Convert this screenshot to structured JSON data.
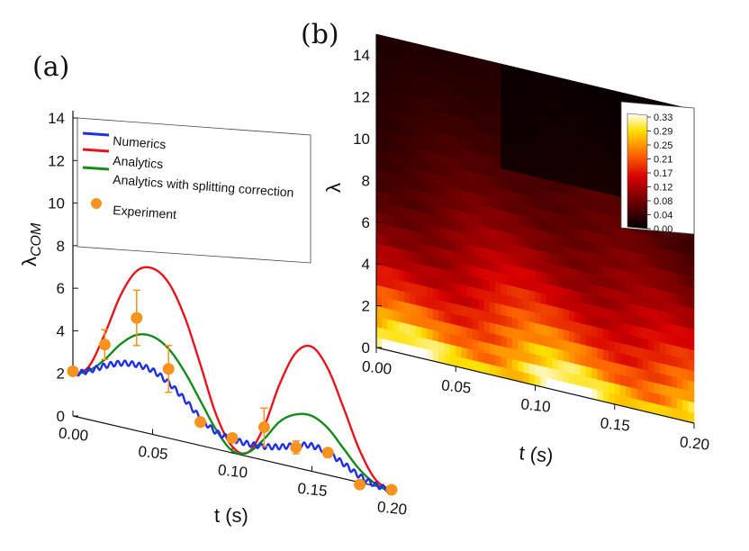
{
  "panel_a": "(a)",
  "panel_b": "(b)",
  "colors": {
    "numerics": "#1f2fe6",
    "analytics": "#e8141c",
    "splitting": "#138a1c",
    "experiment": "#f7931e"
  },
  "chart_data": [
    {
      "type": "line",
      "id": "a",
      "xlabel": "t (s)",
      "ylabel": "λ_COM",
      "ylabel_main": "λ",
      "ylabel_sub": "COM",
      "xlim": [
        0,
        0.2
      ],
      "ylim": [
        0,
        15
      ],
      "xticks": [
        "0.00",
        "0.05",
        "0.10",
        "0.15",
        "0.20"
      ],
      "yticks": [
        "0",
        "2",
        "4",
        "6",
        "8",
        "10",
        "12",
        "14"
      ],
      "legend": [
        "Numerics",
        "Analytics",
        "Analytics with splitting correction",
        "Experiment"
      ],
      "series": [
        {
          "name": "Numerics",
          "color": "#1f2fe6",
          "x": [
            0,
            0.01,
            0.02,
            0.03,
            0.04,
            0.05,
            0.06,
            0.07,
            0.08,
            0.09,
            0.1,
            0.11,
            0.12,
            0.13,
            0.14,
            0.15,
            0.16,
            0.17,
            0.18,
            0.19,
            0.2
          ],
          "y": [
            2.0,
            2.3,
            2.7,
            3.0,
            3.1,
            3.0,
            2.6,
            2.0,
            1.3,
            0.8,
            0.65,
            0.6,
            0.65,
            0.8,
            1.05,
            1.2,
            1.05,
            0.7,
            0.3,
            0.05,
            0.0
          ],
          "wiggle": 0.12
        },
        {
          "name": "Analytics",
          "color": "#e8141c",
          "x": [
            0,
            0.01,
            0.02,
            0.03,
            0.04,
            0.05,
            0.06,
            0.07,
            0.08,
            0.09,
            0.1,
            0.11,
            0.12,
            0.13,
            0.14,
            0.15,
            0.16,
            0.17,
            0.18,
            0.19,
            0.2
          ],
          "y": [
            2.0,
            2.5,
            4.2,
            6.2,
            7.5,
            7.8,
            7.3,
            5.9,
            3.8,
            1.6,
            0.3,
            0.2,
            1.6,
            3.8,
            5.4,
            5.85,
            5.0,
            3.3,
            1.5,
            0.3,
            0.0
          ]
        },
        {
          "name": "Analytics with splitting correction",
          "color": "#138a1c",
          "x": [
            0,
            0.01,
            0.02,
            0.03,
            0.04,
            0.05,
            0.06,
            0.07,
            0.08,
            0.09,
            0.1,
            0.11,
            0.12,
            0.13,
            0.14,
            0.15,
            0.16,
            0.17,
            0.18,
            0.19,
            0.2
          ],
          "y": [
            2.0,
            2.3,
            3.0,
            3.9,
            4.5,
            4.6,
            4.2,
            3.3,
            2.1,
            0.9,
            0.1,
            0.2,
            1.0,
            2.0,
            2.5,
            2.6,
            2.2,
            1.4,
            0.6,
            0.1,
            -0.1
          ]
        },
        {
          "name": "Experiment",
          "color": "#f7931e",
          "x": [
            0,
            0.02,
            0.04,
            0.06,
            0.08,
            0.1,
            0.12,
            0.14,
            0.16,
            0.18,
            0.2
          ],
          "y": [
            2.1,
            3.7,
            5.3,
            3.25,
            1.1,
            0.7,
            1.55,
            0.95,
            1.05,
            -0.1,
            0.0
          ],
          "err": [
            0.1,
            0.7,
            1.3,
            1.1,
            0.1,
            0.2,
            0.9,
            0.3,
            0.2,
            0.1,
            0.1
          ]
        }
      ]
    },
    {
      "type": "heatmap",
      "id": "b",
      "xlabel": "t (s)",
      "ylabel": "λ",
      "xlim": [
        0,
        0.2
      ],
      "ylim": [
        0,
        15
      ],
      "xticks": [
        "0.00",
        "0.05",
        "0.10",
        "0.15",
        "0.20"
      ],
      "yticks": [
        "0",
        "2",
        "4",
        "6",
        "8",
        "10",
        "12",
        "14"
      ],
      "colorbar_ticks": [
        "0.33",
        "0.29",
        "0.25",
        "0.21",
        "0.17",
        "0.12",
        "0.08",
        "0.04",
        "0.00"
      ],
      "zlim": [
        0,
        0.33
      ],
      "note": "Population distribution over λ (0–15) versus time (0–0.2 s); high density near λ≈0–3, fading toward higher λ."
    }
  ]
}
